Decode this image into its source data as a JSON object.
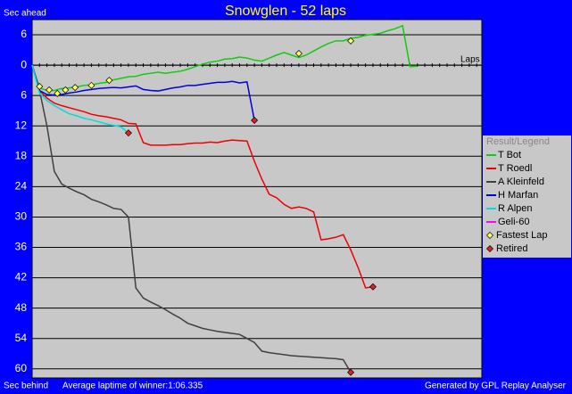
{
  "chart_data": {
    "type": "line",
    "title": "Snowglen - 52 laps",
    "y_label_top": "Sec ahead",
    "y_label_bottom": "Sec behind",
    "x_label": "Laps",
    "footer_left": "Average laptime of winner:1:06.335",
    "footer_right": "Generated by GPL Replay Analyser",
    "legend_title": "Result/Legend",
    "grid": true,
    "xlim": [
      0,
      60.7
    ],
    "xticks": [
      0,
      1,
      2,
      3,
      4,
      5,
      6,
      7,
      8,
      9,
      10,
      11,
      12,
      13,
      14,
      15,
      16,
      17,
      18,
      19,
      20,
      21,
      22,
      23,
      24,
      25,
      26,
      27,
      28,
      29,
      30,
      31,
      32,
      33,
      34,
      35,
      36,
      37,
      38,
      39,
      40,
      41,
      42,
      43,
      44,
      45,
      46,
      47,
      48,
      49,
      50,
      51,
      52,
      53,
      54,
      55,
      56,
      57,
      58,
      59,
      60
    ],
    "ylim": [
      -61.8,
      9
    ],
    "yticks": [
      6,
      0,
      {
        "value": -6,
        "label": "6"
      },
      {
        "value": -12,
        "label": "12"
      },
      {
        "value": -18,
        "label": "18"
      },
      {
        "value": -24,
        "label": "24"
      },
      {
        "value": -30,
        "label": "30"
      },
      {
        "value": -36,
        "label": "36"
      },
      {
        "value": -42,
        "label": "42"
      },
      {
        "value": -48,
        "label": "48"
      },
      {
        "value": -54,
        "label": "54"
      },
      {
        "value": -60,
        "label": "60"
      }
    ],
    "x": [
      0,
      1,
      2,
      3,
      4,
      5,
      6,
      7,
      8,
      9,
      10,
      11,
      12,
      13,
      14,
      15,
      16,
      17,
      18,
      19,
      20,
      21,
      22,
      23,
      24,
      25,
      26,
      27,
      28,
      29,
      30,
      31,
      32,
      33,
      34,
      35,
      36,
      37,
      38,
      39,
      40,
      41,
      42,
      43,
      44,
      45,
      46,
      47,
      48,
      49,
      50,
      51,
      52
    ],
    "series": [
      {
        "name": "T Bot",
        "color": "#11cc11",
        "values": [
          0,
          -4.5,
          -5,
          -5,
          -4.6,
          -4.5,
          -4.3,
          -4,
          -3.9,
          -3.6,
          -3.4,
          -2.9,
          -2.6,
          -2.3,
          -2.2,
          -1.8,
          -1.6,
          -1.4,
          -1.6,
          -1.4,
          -1.2,
          -0.8,
          -0.3,
          0.2,
          0.6,
          0.8,
          1.2,
          1.3,
          1.6,
          1.4,
          1.0,
          0.8,
          1.4,
          2.0,
          2.5,
          2.0,
          1.5,
          2.0,
          2.8,
          3.6,
          4.3,
          4.8,
          4.8,
          5.3,
          5.5,
          5.9,
          6.1,
          6.3,
          6.8,
          7.2,
          7.8,
          -0.3,
          -0.2
        ]
      },
      {
        "name": "T Roedl",
        "color": "#ee0000",
        "values": [
          0,
          -5,
          -6.5,
          -7.5,
          -8,
          -8.4,
          -8.8,
          -9.2,
          -9.7,
          -10,
          -10.2,
          -10.5,
          -10.8,
          -11.5,
          -11.6,
          -15.3,
          -15.8,
          -15.8,
          -15.8,
          -15.7,
          -15.7,
          -15.5,
          -15.4,
          -15.4,
          -15.2,
          -15.3,
          -15.0,
          -14.8,
          -14.9,
          -15.0,
          -19,
          -22.5,
          -25.5,
          -26.2,
          -27.5,
          -28.3,
          -28,
          -28.3,
          -29,
          -34.5,
          -34.3,
          -34.0,
          -33.5,
          -36.5,
          -40,
          -44,
          -43.8,
          null,
          null,
          null,
          null,
          null,
          null
        ]
      },
      {
        "name": "A Kleinfeld",
        "color": "#404040",
        "values": [
          0,
          -5,
          -12,
          -21,
          -23.5,
          -24.3,
          -25,
          -25.6,
          -26.5,
          -27,
          -27.6,
          -28.3,
          -28.5,
          -30,
          -44,
          -46,
          -46.8,
          -47.5,
          -48.3,
          -49.2,
          -50,
          -51,
          -51.5,
          -52,
          -52.3,
          -52.6,
          -52.8,
          -53,
          -53.2,
          -54,
          -54.8,
          -56.5,
          -56.8,
          -57,
          -57.2,
          -57.4,
          -57.5,
          -57.6,
          -57.7,
          -57.8,
          -57.9,
          -58,
          -58.2,
          -60.7,
          null,
          null,
          null,
          null,
          null,
          null,
          null,
          null,
          null
        ]
      },
      {
        "name": "H Marfan",
        "color": "#0000dd",
        "values": [
          0,
          -5,
          -5.8,
          -5.9,
          -5.8,
          -5.5,
          -5.3,
          -5,
          -4.8,
          -4.6,
          -4.5,
          -4.4,
          -4.5,
          -4.3,
          -4.1,
          -4.8,
          -5.0,
          -5.1,
          -4.8,
          -4.5,
          -4.3,
          -4.0,
          -4.0,
          -3.8,
          -3.6,
          -3.4,
          -3.4,
          -3.2,
          -3.5,
          -3.3,
          -10.9,
          null,
          null,
          null,
          null,
          null,
          null,
          null,
          null,
          null,
          null,
          null,
          null,
          null,
          null,
          null,
          null,
          null,
          null,
          null,
          null,
          null,
          null
        ]
      },
      {
        "name": "R Alpen",
        "color": "#00dddd",
        "values": [
          0,
          -5.5,
          -7,
          -8,
          -8.8,
          -9.6,
          -10,
          -10.5,
          -10.8,
          -11.2,
          -11.6,
          -11.9,
          -12.2,
          -13.4,
          null,
          null,
          null,
          null,
          null,
          null,
          null,
          null,
          null,
          null,
          null,
          null,
          null,
          null,
          null,
          null,
          null,
          null,
          null,
          null,
          null,
          null,
          null,
          null,
          null,
          null,
          null,
          null,
          null,
          null,
          null,
          null,
          null,
          null,
          null,
          null,
          null,
          null,
          null
        ]
      },
      {
        "name": "Geli-60",
        "color": "#ff00ff",
        "values": [
          null,
          null,
          null,
          null,
          null,
          null,
          null,
          null,
          null,
          null,
          null,
          null,
          null,
          null,
          null,
          null,
          null,
          null,
          null,
          null,
          null,
          null,
          null,
          null,
          null,
          null,
          null,
          null,
          null,
          null,
          null,
          null,
          null,
          null,
          null,
          null,
          null,
          null,
          null,
          null,
          null,
          null,
          null,
          null,
          null,
          null,
          null,
          null,
          null,
          null,
          null,
          null,
          null
        ]
      }
    ],
    "markers": [
      {
        "name": "Fastest Lap",
        "color": "#ffff66",
        "x": [
          1,
          2.3,
          3.4,
          4.5,
          5.8,
          8,
          10.4,
          36,
          43
        ],
        "values": [
          -4.2,
          -4.9,
          -5.6,
          -4.9,
          -4.4,
          -4,
          -3,
          2.3,
          4.8
        ]
      },
      {
        "name": "Retired",
        "color": "#dd2222",
        "x": [
          13,
          30,
          46,
          43
        ],
        "values": [
          -13.4,
          -10.9,
          -43.8,
          -60.7
        ]
      }
    ]
  }
}
